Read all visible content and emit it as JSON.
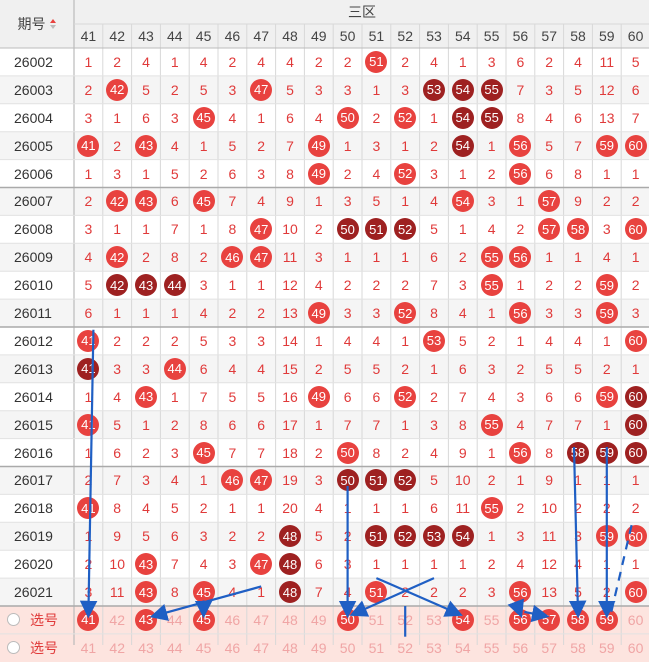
{
  "header": {
    "period_label": "期号",
    "sort_icon": "sort-updown-icon",
    "zone_label": "三区"
  },
  "columns": [
    "41",
    "42",
    "43",
    "44",
    "45",
    "46",
    "47",
    "48",
    "49",
    "50",
    "51",
    "52",
    "53",
    "54",
    "55",
    "56",
    "57",
    "58",
    "59",
    "60"
  ],
  "rows": [
    {
      "period": "26002",
      "cells": [
        "1",
        "2",
        "4",
        "1",
        "4",
        "2",
        "4",
        "4",
        "2",
        "2",
        "51",
        "2",
        "4",
        "1",
        "3",
        "6",
        "2",
        "4",
        "11",
        "5"
      ]
    },
    {
      "period": "26003",
      "cells": [
        "2",
        "42",
        "5",
        "2",
        "5",
        "3",
        "47",
        "5",
        "3",
        "3",
        "1",
        "3",
        "53",
        "54",
        "55",
        "7",
        "3",
        "5",
        "12",
        "6"
      ]
    },
    {
      "period": "26004",
      "cells": [
        "3",
        "1",
        "6",
        "3",
        "45",
        "4",
        "1",
        "6",
        "4",
        "50",
        "2",
        "52",
        "1",
        "54",
        "55",
        "8",
        "4",
        "6",
        "13",
        "7"
      ]
    },
    {
      "period": "26005",
      "cells": [
        "41",
        "2",
        "43",
        "4",
        "1",
        "5",
        "2",
        "7",
        "49",
        "1",
        "3",
        "1",
        "2",
        "54",
        "1",
        "56",
        "5",
        "7",
        "59",
        "60"
      ]
    },
    {
      "period": "26006",
      "cells": [
        "1",
        "3",
        "1",
        "5",
        "2",
        "6",
        "3",
        "8",
        "49",
        "2",
        "4",
        "52",
        "3",
        "1",
        "2",
        "56",
        "6",
        "8",
        "1",
        "1"
      ]
    },
    {
      "period": "26007",
      "cells": [
        "2",
        "42",
        "43",
        "6",
        "45",
        "7",
        "4",
        "9",
        "1",
        "3",
        "5",
        "1",
        "4",
        "54",
        "3",
        "1",
        "57",
        "9",
        "2",
        "2"
      ]
    },
    {
      "period": "26008",
      "cells": [
        "3",
        "1",
        "1",
        "7",
        "1",
        "8",
        "47",
        "10",
        "2",
        "50",
        "51",
        "52",
        "5",
        "1",
        "4",
        "2",
        "57",
        "58",
        "3",
        "60"
      ]
    },
    {
      "period": "26009",
      "cells": [
        "4",
        "42",
        "2",
        "8",
        "2",
        "46",
        "47",
        "11",
        "3",
        "1",
        "1",
        "1",
        "6",
        "2",
        "55",
        "56",
        "1",
        "1",
        "4",
        "1"
      ]
    },
    {
      "period": "26010",
      "cells": [
        "5",
        "42",
        "43",
        "44",
        "3",
        "1",
        "1",
        "12",
        "4",
        "2",
        "2",
        "2",
        "7",
        "3",
        "55",
        "1",
        "2",
        "2",
        "59",
        "2"
      ]
    },
    {
      "period": "26011",
      "cells": [
        "6",
        "1",
        "1",
        "1",
        "4",
        "2",
        "2",
        "13",
        "49",
        "3",
        "3",
        "52",
        "8",
        "4",
        "1",
        "56",
        "3",
        "3",
        "59",
        "3"
      ]
    },
    {
      "period": "26012",
      "cells": [
        "41",
        "2",
        "2",
        "2",
        "5",
        "3",
        "3",
        "14",
        "1",
        "4",
        "4",
        "1",
        "53",
        "5",
        "2",
        "1",
        "4",
        "4",
        "1",
        "60"
      ]
    },
    {
      "period": "26013",
      "cells": [
        "41",
        "3",
        "3",
        "44",
        "6",
        "4",
        "4",
        "15",
        "2",
        "5",
        "5",
        "2",
        "1",
        "6",
        "3",
        "2",
        "5",
        "5",
        "2",
        "1"
      ]
    },
    {
      "period": "26014",
      "cells": [
        "1",
        "4",
        "43",
        "1",
        "7",
        "5",
        "5",
        "16",
        "49",
        "6",
        "6",
        "52",
        "2",
        "7",
        "4",
        "3",
        "6",
        "6",
        "59",
        "60"
      ]
    },
    {
      "period": "26015",
      "cells": [
        "41",
        "5",
        "1",
        "2",
        "8",
        "6",
        "6",
        "17",
        "1",
        "7",
        "7",
        "1",
        "3",
        "8",
        "55",
        "4",
        "7",
        "7",
        "1",
        "60"
      ]
    },
    {
      "period": "26016",
      "cells": [
        "1",
        "6",
        "2",
        "3",
        "45",
        "7",
        "7",
        "18",
        "2",
        "50",
        "8",
        "2",
        "4",
        "9",
        "1",
        "56",
        "8",
        "58",
        "59",
        "60"
      ]
    },
    {
      "period": "26017",
      "cells": [
        "2",
        "7",
        "3",
        "4",
        "1",
        "46",
        "47",
        "19",
        "3",
        "50",
        "51",
        "52",
        "5",
        "10",
        "2",
        "1",
        "9",
        "1",
        "1",
        "1"
      ]
    },
    {
      "period": "26018",
      "cells": [
        "41",
        "8",
        "4",
        "5",
        "2",
        "1",
        "1",
        "20",
        "4",
        "1",
        "1",
        "1",
        "6",
        "11",
        "55",
        "2",
        "10",
        "2",
        "2",
        "2"
      ]
    },
    {
      "period": "26019",
      "cells": [
        "1",
        "9",
        "5",
        "6",
        "3",
        "2",
        "2",
        "48",
        "5",
        "2",
        "51",
        "52",
        "53",
        "54",
        "1",
        "3",
        "11",
        "3",
        "59",
        "60"
      ]
    },
    {
      "period": "26020",
      "cells": [
        "2",
        "10",
        "43",
        "7",
        "4",
        "3",
        "47",
        "48",
        "6",
        "3",
        "1",
        "1",
        "1",
        "1",
        "2",
        "4",
        "12",
        "4",
        "1",
        "1"
      ]
    },
    {
      "period": "26021",
      "cells": [
        "3",
        "11",
        "43",
        "8",
        "45",
        "4",
        "1",
        "48",
        "7",
        "4",
        "51",
        "2",
        "2",
        "2",
        "3",
        "56",
        "13",
        "5",
        "2",
        "60"
      ]
    }
  ],
  "select_rows": [
    {
      "label": "选号",
      "cells": [
        "41",
        "42",
        "43",
        "44",
        "45",
        "46",
        "47",
        "48",
        "49",
        "50",
        "51",
        "52",
        "53",
        "54",
        "55",
        "56",
        "57",
        "58",
        "59",
        "60"
      ],
      "selected": [
        "41",
        "43",
        "45",
        "50",
        "54",
        "56",
        "57",
        "58",
        "59"
      ]
    },
    {
      "label": "选号",
      "cells": [
        "41",
        "42",
        "43",
        "44",
        "45",
        "46",
        "47",
        "48",
        "49",
        "50",
        "51",
        "52",
        "53",
        "54",
        "55",
        "56",
        "57",
        "58",
        "59",
        "60"
      ],
      "selected": []
    }
  ],
  "dark_balls": {
    "26003": [
      "53",
      "54",
      "55"
    ],
    "26004": [
      "54",
      "55"
    ],
    "26005": [
      "54"
    ],
    "26008": [
      "50",
      "51",
      "52"
    ],
    "26010": [
      "42",
      "43",
      "44"
    ],
    "26013": [
      "41"
    ],
    "26014": [
      "60"
    ],
    "26015": [
      "60"
    ],
    "26016": [
      "58",
      "59",
      "60"
    ],
    "26017": [
      "50",
      "51",
      "52"
    ],
    "26019": [
      "48",
      "51",
      "52",
      "53",
      "54"
    ],
    "26020": [
      "48"
    ],
    "26021": [
      "48"
    ]
  },
  "colors": {
    "ball_red": "#e8423f",
    "ball_dark": "#9e2121",
    "miss_text": "#e03a3a",
    "arrow": "#1f5fc4",
    "select_bg": "#fde4df",
    "header_bg": "#f0f0f0",
    "stripe_bg": "#f5f5f5"
  }
}
